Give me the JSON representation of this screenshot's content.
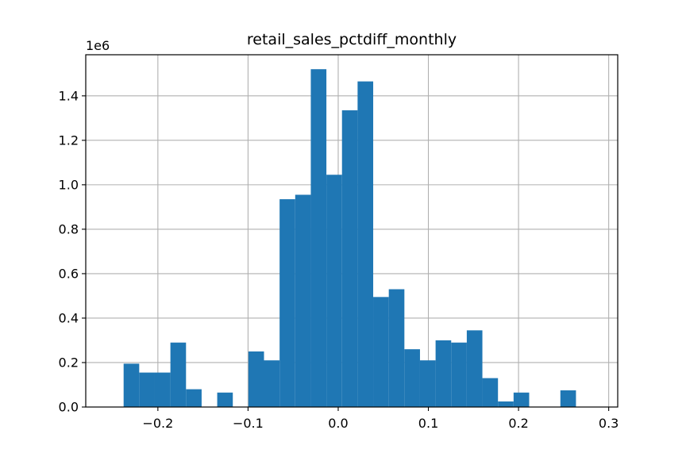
{
  "chart_data": {
    "type": "bar",
    "title": "retail_sales_pctdiff_monthly",
    "xlabel": "",
    "ylabel": "",
    "y_offset_label": "1e6",
    "xlim": [
      -0.28,
      0.31
    ],
    "ylim": [
      0,
      1.585
    ],
    "grid": true,
    "bar_color": "#1f77b4",
    "x_ticks": [
      -0.2,
      -0.1,
      0.0,
      0.1,
      0.2,
      0.3
    ],
    "x_tick_labels": [
      "−0.2",
      "−0.1",
      "0.0",
      "0.1",
      "0.2",
      "0.3"
    ],
    "y_ticks": [
      0.0,
      0.2,
      0.4,
      0.6,
      0.8,
      1.0,
      1.2,
      1.4
    ],
    "y_tick_labels": [
      "0.0",
      "0.2",
      "0.4",
      "0.6",
      "0.8",
      "1.0",
      "1.2",
      "1.4"
    ],
    "bin_start": -0.238,
    "bin_width": 0.0173,
    "values": [
      0.195,
      0.155,
      0.155,
      0.29,
      0.08,
      0.0,
      0.065,
      0.0,
      0.25,
      0.21,
      0.935,
      0.955,
      1.52,
      1.045,
      1.335,
      1.465,
      0.495,
      0.53,
      0.26,
      0.21,
      0.3,
      0.29,
      0.345,
      0.13,
      0.025,
      0.065,
      0.0,
      0.0,
      0.075
    ]
  }
}
